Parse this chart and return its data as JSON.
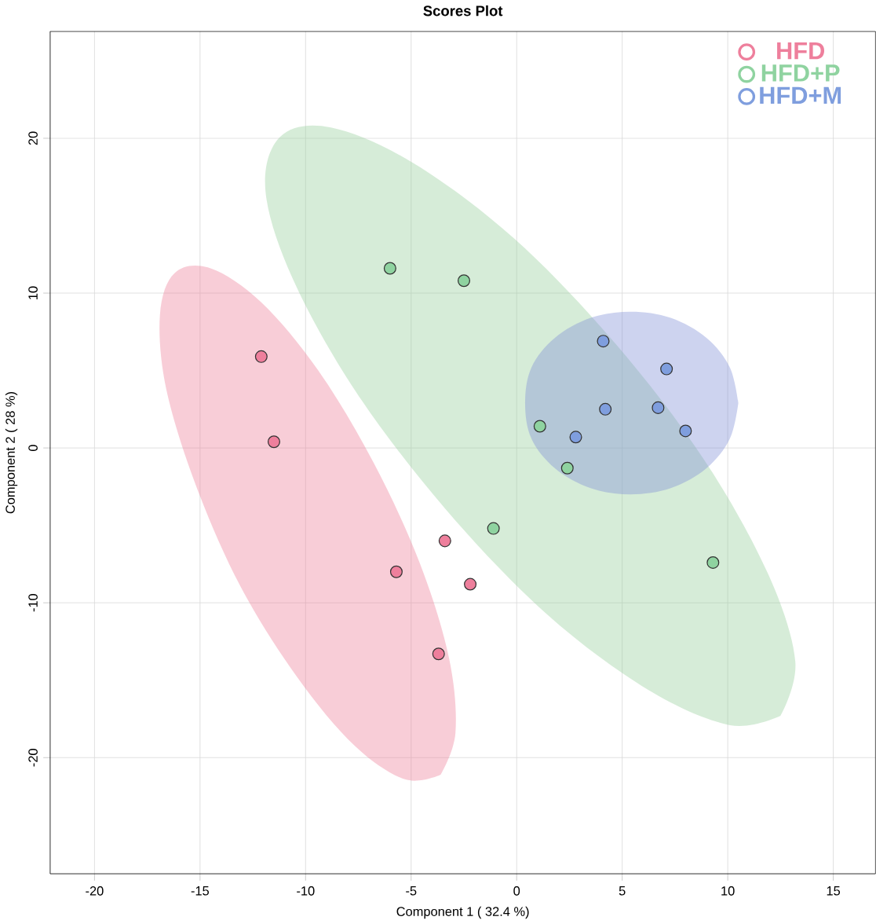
{
  "chart_data": {
    "type": "scatter",
    "title": "Scores Plot",
    "xlabel": "Component 1 ( 32.4 %)",
    "ylabel": "Component 2 ( 28 %)",
    "xlim": [
      -22.1,
      17.0
    ],
    "ylim": [
      -27.5,
      26.9
    ],
    "xticks": [
      -20,
      -15,
      -10,
      -5,
      0,
      5,
      10,
      15
    ],
    "yticks": [
      -20,
      -10,
      0,
      10,
      20
    ],
    "grid": true,
    "legend": "top right",
    "series": [
      {
        "type": "area",
        "marker": "none",
        "color": "#99d09e",
        "x": [
          12.5,
          13.2,
          11.9,
          8.9,
          4.7,
          -0.1,
          -4.9,
          -8.8,
          -11.2,
          -11.9,
          -10.6,
          -7.6,
          -3.4,
          1.4,
          6.2,
          10.1
        ],
        "values": [
          -17.3,
          -13.8,
          -8.1,
          -0.8,
          6.7,
          13.5,
          18.4,
          20.7,
          20.1,
          16.6,
          10.9,
          3.6,
          -3.9,
          -10.7,
          -15.6,
          -17.9
        ]
      },
      {
        "type": "area",
        "marker": "none",
        "color": "#ed829b",
        "x": [
          -3.6,
          -2.9,
          -3.2,
          -4.6,
          -6.8,
          -9.4,
          -12.1,
          -14.5,
          -16.2,
          -16.9,
          -16.6,
          -15.2,
          -13.1,
          -10.4,
          -7.7,
          -5.3
        ],
        "values": [
          -21.1,
          -18.4,
          -13.6,
          -7.4,
          -0.9,
          5.0,
          9.4,
          11.6,
          11.3,
          8.6,
          3.8,
          -2.4,
          -8.9,
          -14.8,
          -19.2,
          -21.4
        ]
      },
      {
        "type": "area",
        "marker": "none",
        "color": "#8291d7",
        "x": [
          10.5,
          10.1,
          9.0,
          7.3,
          5.4,
          3.5,
          1.8,
          0.7,
          0.4,
          0.7,
          1.8,
          3.5,
          5.4,
          7.3,
          9.0,
          10.1
        ],
        "values": [
          2.9,
          5.2,
          7.1,
          8.4,
          8.8,
          8.4,
          7.1,
          5.2,
          2.9,
          0.6,
          -1.3,
          -2.6,
          -3.0,
          -2.6,
          -1.3,
          0.6
        ]
      },
      {
        "name": "HFD",
        "marker": "circle",
        "color": "#ee7f9c",
        "x": [
          -12.1,
          -11.5,
          -3.4,
          -5.7,
          -2.2,
          -3.7
        ],
        "values": [
          5.9,
          0.4,
          -6.0,
          -8.0,
          -8.8,
          -13.3
        ]
      },
      {
        "name": "HFD+P",
        "marker": "circle",
        "color": "#8fd3a0",
        "x": [
          -6.0,
          -2.5,
          1.1,
          2.4,
          -1.1,
          9.3
        ],
        "values": [
          11.6,
          10.8,
          1.4,
          -1.3,
          -5.2,
          -7.4
        ]
      },
      {
        "name": "HFD+M",
        "marker": "circle",
        "color": "#7f9ede",
        "x": [
          4.1,
          7.1,
          4.2,
          6.7,
          8.0,
          2.8
        ],
        "values": [
          6.9,
          5.1,
          2.5,
          2.6,
          1.1,
          0.7
        ]
      }
    ]
  }
}
